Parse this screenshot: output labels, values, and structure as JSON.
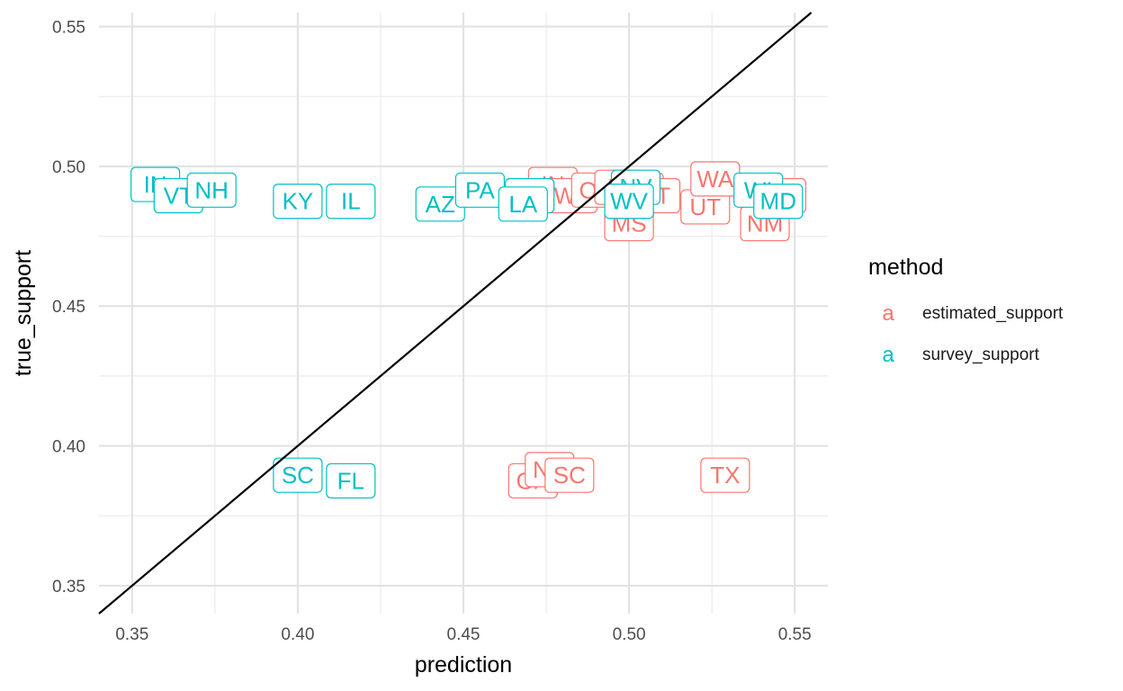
{
  "chart_data": {
    "type": "scatter",
    "title": "",
    "xlabel": "prediction",
    "ylabel": "true_support",
    "xlim": [
      0.34,
      0.56
    ],
    "ylim": [
      0.34,
      0.555
    ],
    "x_ticks": [
      0.35,
      0.4,
      0.45,
      0.5,
      0.55
    ],
    "x_tick_labels": [
      "0.35",
      "0.40",
      "0.45",
      "0.50",
      "0.55"
    ],
    "y_ticks": [
      0.35,
      0.4,
      0.45,
      0.5,
      0.55
    ],
    "y_tick_labels": [
      "0.35",
      "0.40",
      "0.45",
      "0.50",
      "0.55"
    ],
    "grid": true,
    "reference_line": {
      "slope": 1,
      "intercept": 0
    },
    "legend": {
      "title": "method",
      "placement": "right",
      "key_glyph": "a",
      "entries": [
        {
          "label": "estimated_support",
          "color": "#F8766D"
        },
        {
          "label": "survey_support",
          "color": "#00BFC4"
        }
      ]
    },
    "series": [
      {
        "name": "estimated_support",
        "color": "#F8766D",
        "points": [
          {
            "label": "IN",
            "x": 0.477,
            "y": 0.4935
          },
          {
            "label": "WY",
            "x": 0.483,
            "y": 0.4895
          },
          {
            "label": "OK",
            "x": 0.49,
            "y": 0.4915
          },
          {
            "label": "ID",
            "x": 0.497,
            "y": 0.4925
          },
          {
            "label": "AL",
            "x": 0.503,
            "y": 0.4915
          },
          {
            "label": "VT",
            "x": 0.508,
            "y": 0.4895
          },
          {
            "label": "MS",
            "x": 0.5,
            "y": 0.4795
          },
          {
            "label": "UT",
            "x": 0.523,
            "y": 0.4855
          },
          {
            "label": "WA",
            "x": 0.526,
            "y": 0.4955
          },
          {
            "label": "NM",
            "x": 0.541,
            "y": 0.4795
          },
          {
            "label": "ND",
            "x": 0.546,
            "y": 0.4895
          },
          {
            "label": "GA",
            "x": 0.471,
            "y": 0.3875
          },
          {
            "label": "NC",
            "x": 0.476,
            "y": 0.3915
          },
          {
            "label": "SC",
            "x": 0.482,
            "y": 0.3895
          },
          {
            "label": "TX",
            "x": 0.529,
            "y": 0.3895
          }
        ]
      },
      {
        "name": "survey_support",
        "color": "#00BFC4",
        "points": [
          {
            "label": "IN",
            "x": 0.357,
            "y": 0.4935
          },
          {
            "label": "VT",
            "x": 0.364,
            "y": 0.4895
          },
          {
            "label": "NH",
            "x": 0.374,
            "y": 0.4915
          },
          {
            "label": "KY",
            "x": 0.4,
            "y": 0.4875
          },
          {
            "label": "IL",
            "x": 0.416,
            "y": 0.4875
          },
          {
            "label": "AZ",
            "x": 0.443,
            "y": 0.4865
          },
          {
            "label": "PA",
            "x": 0.455,
            "y": 0.4915
          },
          {
            "label": "OH",
            "x": 0.47,
            "y": 0.4895
          },
          {
            "label": "LA",
            "x": 0.468,
            "y": 0.4865
          },
          {
            "label": "NV",
            "x": 0.502,
            "y": 0.4925
          },
          {
            "label": "WV",
            "x": 0.5,
            "y": 0.4875
          },
          {
            "label": "WI",
            "x": 0.539,
            "y": 0.4915
          },
          {
            "label": "MD",
            "x": 0.545,
            "y": 0.4875
          },
          {
            "label": "SC",
            "x": 0.4,
            "y": 0.3895
          },
          {
            "label": "FL",
            "x": 0.416,
            "y": 0.3875
          }
        ]
      }
    ]
  }
}
